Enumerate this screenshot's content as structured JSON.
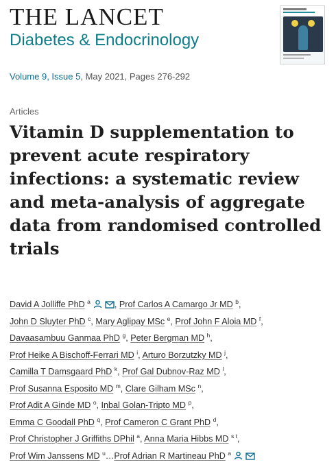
{
  "journal": {
    "title": "THE LANCET",
    "subtitle": "Diabetes & Endocrinology"
  },
  "issue": {
    "volume": "Volume 9, Issue 5",
    "rest": ", May 2021, Pages 276-292"
  },
  "article": {
    "section": "Articles",
    "title": "Vitamin D supplementation to prevent acute respiratory infections: a systematic review and meta-analysis of aggregate data from randomised controlled trials"
  },
  "authors": [
    [
      {
        "name": "David A Jolliffe PhD",
        "aff": "a",
        "icons": [
          "person-icon",
          "mail-icon"
        ],
        "sep": ","
      },
      {
        "name": "Prof Carlos A Camargo Jr MD",
        "aff": "b",
        "sep": ","
      }
    ],
    [
      {
        "name": "John D Sluyter PhD",
        "aff": "c",
        "sep": ","
      },
      {
        "name": "Mary Aglipay MSc",
        "aff": "e",
        "sep": ","
      },
      {
        "name": "Prof John F Aloia MD",
        "aff": "f",
        "sep": ","
      }
    ],
    [
      {
        "name": "Davaasambuu Ganmaa PhD",
        "aff": "g",
        "sep": ","
      },
      {
        "name": "Peter Bergman MD",
        "aff": "h",
        "sep": ","
      }
    ],
    [
      {
        "name": "Prof Heike A Bischoff-Ferrari MD",
        "aff": "i",
        "sep": ","
      },
      {
        "name": "Arturo Borzutzky MD",
        "aff": "j",
        "sep": ","
      }
    ],
    [
      {
        "name": "Camilla T Damsgaard PhD",
        "aff": "k",
        "sep": ","
      },
      {
        "name": "Prof Gal Dubnov-Raz MD",
        "aff": "l",
        "sep": ","
      }
    ],
    [
      {
        "name": "Prof Susanna Esposito MD",
        "aff": "m",
        "sep": ","
      },
      {
        "name": "Clare Gilham MSc",
        "aff": "n",
        "sep": ","
      }
    ],
    [
      {
        "name": "Prof Adit A Ginde MD",
        "aff": "o",
        "sep": ","
      },
      {
        "name": "Inbal Golan-Tripto MD",
        "aff": "p",
        "sep": ","
      }
    ],
    [
      {
        "name": "Emma C Goodall PhD",
        "aff": "q",
        "sep": ","
      },
      {
        "name": "Prof Cameron C Grant PhD",
        "aff": "d",
        "sep": ","
      }
    ],
    [
      {
        "name": "Prof Christopher J Griffiths DPhil",
        "aff": "a",
        "sep": ","
      },
      {
        "name": "Anna Maria Hibbs MD",
        "aff": "s t",
        "sep": ","
      }
    ],
    [
      {
        "name": "Prof Wim Janssens MD",
        "aff": "u",
        "sep": "…"
      },
      {
        "name": "Prof Adrian R Martineau PhD",
        "aff": "a",
        "icons": [
          "person-icon",
          "mail-icon"
        ],
        "sep": ""
      }
    ]
  ],
  "colors": {
    "accent": "#0d7d8a",
    "link": "#0d6e91"
  }
}
